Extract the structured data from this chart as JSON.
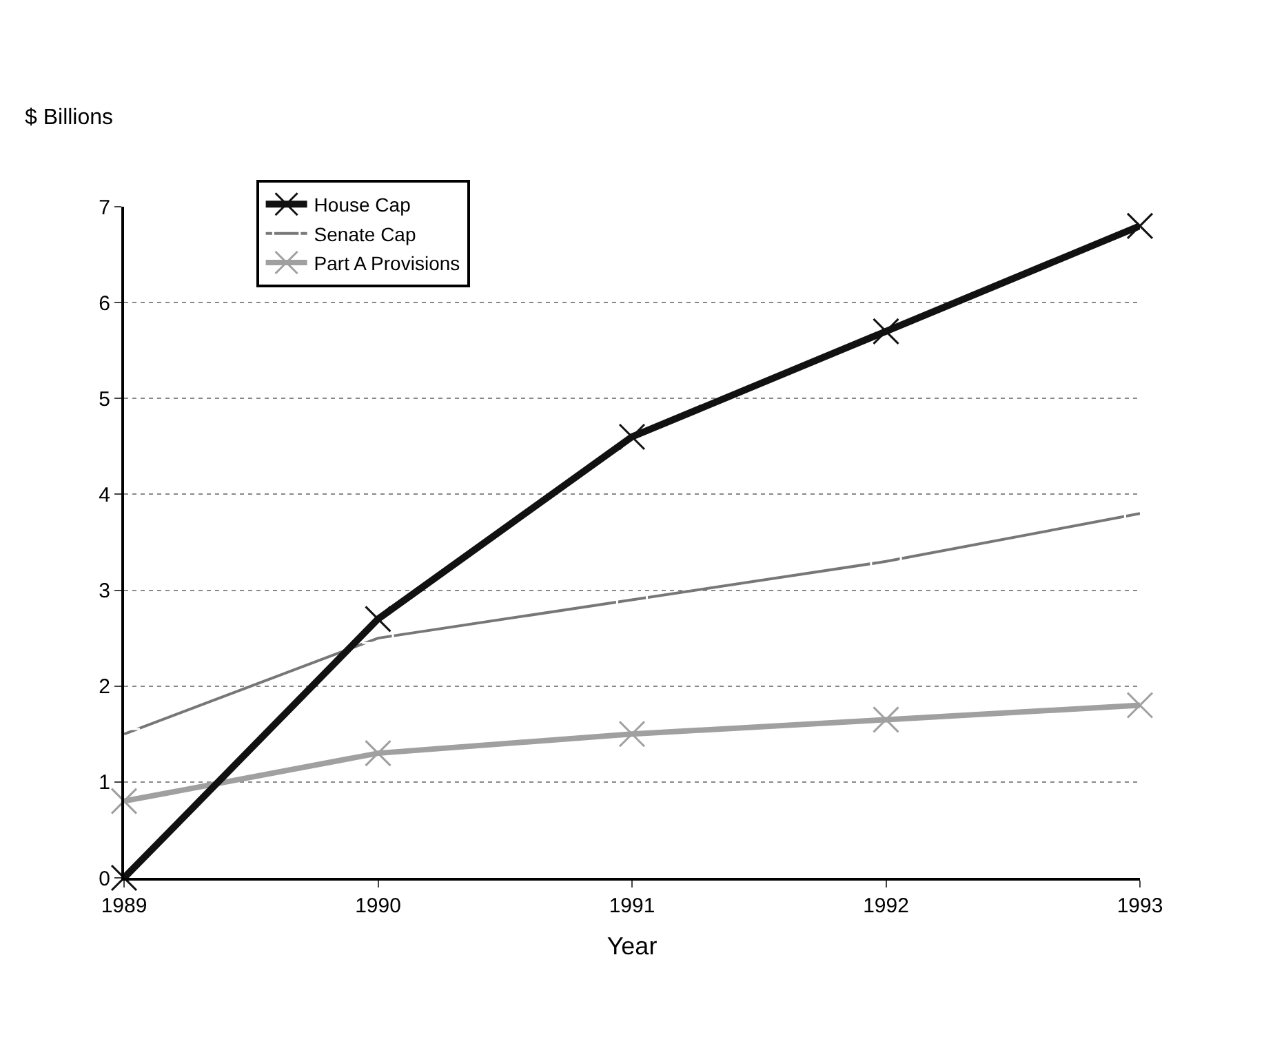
{
  "chart_data": {
    "type": "line",
    "ylabel": "$ Billions",
    "xlabel": "Year",
    "categories": [
      "1989",
      "1990",
      "1991",
      "1992",
      "1993"
    ],
    "series": [
      {
        "name": "House Cap",
        "color": "#111111",
        "values": [
          0,
          2.7,
          4.6,
          5.7,
          6.8
        ]
      },
      {
        "name": "Senate Cap",
        "color": "#777777",
        "values": [
          1.5,
          2.5,
          2.9,
          3.3,
          3.8
        ]
      },
      {
        "name": "Part A Provisions",
        "color": "#a0a0a0",
        "values": [
          0.8,
          1.3,
          1.5,
          1.65,
          1.8
        ]
      }
    ],
    "ylim": [
      0,
      7
    ],
    "yticks": [
      0,
      1,
      2,
      3,
      4,
      5,
      6,
      7
    ],
    "grid": "y",
    "legend": "top left",
    "line_style": "solid",
    "marker": "cross"
  }
}
